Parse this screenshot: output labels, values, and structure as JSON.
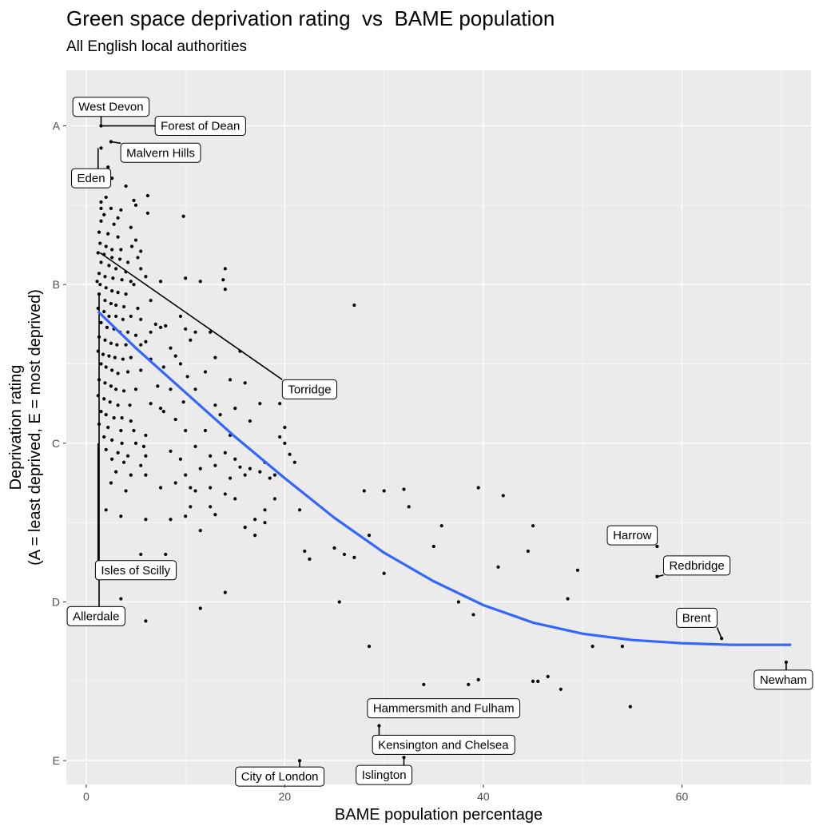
{
  "chart_data": {
    "type": "scatter",
    "title": "Green space deprivation rating  vs  BAME population",
    "subtitle": "All English local authorities",
    "xlabel": "BAME population percentage",
    "ylabel_lines": [
      "Deprivation rating",
      "(A = least deprived, E = most deprived)"
    ],
    "xlim": [
      -2,
      73
    ],
    "ylim": [
      5.15,
      0.65
    ],
    "x_ticks": [
      0,
      20,
      40,
      60
    ],
    "x_tick_labels": [
      "0",
      "20",
      "40",
      "60"
    ],
    "y_ticks": [
      1,
      2,
      3,
      4,
      5
    ],
    "y_tick_labels": [
      "A",
      "B",
      "C",
      "D",
      "E"
    ],
    "grid": true,
    "colors": {
      "panel": "#ebebeb",
      "grid": "#ffffff",
      "points": "#000000",
      "smooth": "#3366ff"
    },
    "points": [
      [
        1.5,
        1.0
      ],
      [
        2.5,
        1.1
      ],
      [
        1.5,
        1.14
      ],
      [
        2.2,
        1.26
      ],
      [
        2.6,
        1.33
      ],
      [
        4.0,
        1.38
      ],
      [
        2.0,
        1.45
      ],
      [
        1.5,
        1.48
      ],
      [
        4.8,
        1.47
      ],
      [
        6.2,
        1.44
      ],
      [
        5.0,
        1.5
      ],
      [
        1.5,
        1.52
      ],
      [
        2.5,
        1.52
      ],
      [
        3.5,
        1.53
      ],
      [
        1.8,
        1.56
      ],
      [
        3.2,
        1.58
      ],
      [
        6.2,
        1.55
      ],
      [
        9.8,
        1.57
      ],
      [
        1.5,
        1.6
      ],
      [
        2.8,
        1.62
      ],
      [
        4.5,
        1.64
      ],
      [
        1.3,
        1.67
      ],
      [
        2.2,
        1.68
      ],
      [
        3.2,
        1.7
      ],
      [
        5.0,
        1.72
      ],
      [
        1.4,
        1.74
      ],
      [
        2.0,
        1.76
      ],
      [
        2.6,
        1.78
      ],
      [
        3.5,
        1.78
      ],
      [
        4.6,
        1.76
      ],
      [
        5.5,
        1.79
      ],
      [
        1.2,
        1.8
      ],
      [
        1.8,
        1.81
      ],
      [
        2.6,
        1.83
      ],
      [
        3.4,
        1.84
      ],
      [
        4.2,
        1.86
      ],
      [
        5.2,
        1.83
      ],
      [
        1.5,
        1.86
      ],
      [
        2.3,
        1.88
      ],
      [
        3.0,
        1.9
      ],
      [
        4.0,
        1.92
      ],
      [
        5.5,
        1.9
      ],
      [
        1.3,
        1.93
      ],
      [
        1.9,
        1.95
      ],
      [
        2.7,
        1.96
      ],
      [
        3.6,
        1.97
      ],
      [
        4.5,
        1.98
      ],
      [
        6.0,
        1.95
      ],
      [
        7.5,
        1.98
      ],
      [
        14.0,
        1.9
      ],
      [
        1.1,
        1.98
      ],
      [
        1.4,
        2.0
      ],
      [
        2.0,
        2.02
      ],
      [
        2.6,
        2.04
      ],
      [
        3.2,
        2.05
      ],
      [
        4.0,
        2.06
      ],
      [
        4.8,
        2.0
      ],
      [
        10.0,
        1.96
      ],
      [
        11.5,
        1.98
      ],
      [
        13.8,
        1.97
      ],
      [
        1.3,
        2.06
      ],
      [
        1.9,
        2.1
      ],
      [
        2.5,
        2.12
      ],
      [
        3.0,
        2.13
      ],
      [
        3.8,
        2.14
      ],
      [
        5.2,
        2.15
      ],
      [
        6.5,
        2.1
      ],
      [
        14.0,
        2.03
      ],
      [
        1.2,
        2.15
      ],
      [
        1.8,
        2.17
      ],
      [
        2.3,
        2.2
      ],
      [
        3.0,
        2.2
      ],
      [
        3.7,
        2.22
      ],
      [
        4.5,
        2.2
      ],
      [
        5.5,
        2.22
      ],
      [
        7.0,
        2.25
      ],
      [
        8.0,
        2.26
      ],
      [
        9.5,
        2.2
      ],
      [
        27.0,
        2.13
      ],
      [
        1.5,
        2.24
      ],
      [
        2.1,
        2.27
      ],
      [
        2.8,
        2.28
      ],
      [
        3.4,
        2.3
      ],
      [
        4.2,
        2.3
      ],
      [
        5.0,
        2.32
      ],
      [
        6.5,
        2.3
      ],
      [
        7.5,
        2.27
      ],
      [
        10.0,
        2.28
      ],
      [
        11.0,
        2.3
      ],
      [
        12.5,
        2.3
      ],
      [
        1.3,
        2.33
      ],
      [
        1.9,
        2.35
      ],
      [
        2.5,
        2.37
      ],
      [
        3.1,
        2.38
      ],
      [
        4.0,
        2.38
      ],
      [
        5.5,
        2.38
      ],
      [
        6.0,
        2.36
      ],
      [
        8.5,
        2.4
      ],
      [
        9.0,
        2.45
      ],
      [
        10.5,
        2.35
      ],
      [
        1.2,
        2.42
      ],
      [
        1.7,
        2.44
      ],
      [
        2.3,
        2.45
      ],
      [
        2.9,
        2.46
      ],
      [
        3.7,
        2.47
      ],
      [
        4.5,
        2.46
      ],
      [
        6.5,
        2.47
      ],
      [
        9.5,
        2.5
      ],
      [
        13.0,
        2.46
      ],
      [
        15.5,
        2.42
      ],
      [
        1.5,
        2.5
      ],
      [
        2.0,
        2.52
      ],
      [
        2.6,
        2.54
      ],
      [
        3.2,
        2.56
      ],
      [
        4.2,
        2.55
      ],
      [
        5.5,
        2.54
      ],
      [
        7.8,
        2.52
      ],
      [
        10.2,
        2.58
      ],
      [
        12.0,
        2.55
      ],
      [
        14.5,
        2.6
      ],
      [
        1.3,
        2.6
      ],
      [
        1.9,
        2.62
      ],
      [
        2.5,
        2.64
      ],
      [
        3.0,
        2.66
      ],
      [
        3.8,
        2.67
      ],
      [
        5.0,
        2.66
      ],
      [
        7.2,
        2.64
      ],
      [
        8.5,
        2.66
      ],
      [
        11.0,
        2.66
      ],
      [
        16.0,
        2.62
      ],
      [
        1.2,
        2.7
      ],
      [
        1.8,
        2.72
      ],
      [
        2.4,
        2.74
      ],
      [
        3.2,
        2.76
      ],
      [
        4.4,
        2.76
      ],
      [
        6.5,
        2.75
      ],
      [
        7.5,
        2.78
      ],
      [
        9.8,
        2.74
      ],
      [
        13.0,
        2.76
      ],
      [
        17.5,
        2.75
      ],
      [
        1.5,
        2.8
      ],
      [
        2.0,
        2.82
      ],
      [
        2.8,
        2.84
      ],
      [
        3.6,
        2.84
      ],
      [
        4.5,
        2.86
      ],
      [
        7.8,
        2.8
      ],
      [
        9.0,
        2.85
      ],
      [
        13.5,
        2.82
      ],
      [
        15.0,
        2.78
      ],
      [
        19.5,
        2.75
      ],
      [
        1.3,
        2.88
      ],
      [
        2.2,
        2.9
      ],
      [
        3.5,
        2.92
      ],
      [
        4.8,
        2.92
      ],
      [
        6.0,
        2.95
      ],
      [
        10.0,
        2.92
      ],
      [
        12.0,
        2.92
      ],
      [
        14.5,
        2.95
      ],
      [
        16.5,
        2.86
      ],
      [
        20.0,
        2.9
      ],
      [
        1.8,
        2.96
      ],
      [
        2.6,
        2.98
      ],
      [
        3.6,
        3.0
      ],
      [
        5.0,
        3.0
      ],
      [
        5.8,
        3.02
      ],
      [
        8.5,
        3.05
      ],
      [
        11.0,
        3.02
      ],
      [
        14.0,
        3.06
      ],
      [
        19.5,
        2.96
      ],
      [
        20.0,
        3.0
      ],
      [
        2.0,
        3.04
      ],
      [
        3.2,
        3.06
      ],
      [
        4.2,
        3.08
      ],
      [
        6.0,
        3.08
      ],
      [
        9.5,
        3.1
      ],
      [
        12.5,
        3.08
      ],
      [
        15.0,
        3.1
      ],
      [
        18.0,
        3.12
      ],
      [
        20.5,
        3.07
      ],
      [
        2.6,
        3.1
      ],
      [
        3.8,
        3.12
      ],
      [
        5.5,
        3.14
      ],
      [
        10.0,
        3.2
      ],
      [
        11.5,
        3.16
      ],
      [
        13.0,
        3.14
      ],
      [
        15.5,
        3.15
      ],
      [
        16.5,
        3.16
      ],
      [
        17.5,
        3.18
      ],
      [
        19.0,
        3.2
      ],
      [
        21.0,
        3.12
      ],
      [
        3.0,
        3.18
      ],
      [
        4.5,
        3.2
      ],
      [
        6.0,
        3.2
      ],
      [
        9.0,
        3.25
      ],
      [
        10.5,
        3.28
      ],
      [
        12.5,
        3.28
      ],
      [
        14.5,
        3.22
      ],
      [
        16.0,
        3.2
      ],
      [
        18.5,
        3.22
      ],
      [
        2.5,
        3.25
      ],
      [
        4.0,
        3.3
      ],
      [
        7.5,
        3.28
      ],
      [
        11.0,
        3.3
      ],
      [
        14.0,
        3.32
      ],
      [
        15.0,
        3.35
      ],
      [
        19.0,
        3.35
      ],
      [
        28.0,
        3.3
      ],
      [
        30.0,
        3.3
      ],
      [
        32.0,
        3.29
      ],
      [
        39.5,
        3.28
      ],
      [
        42.0,
        3.33
      ],
      [
        10.5,
        3.4
      ],
      [
        12.5,
        3.4
      ],
      [
        18.0,
        3.42
      ],
      [
        21.5,
        3.42
      ],
      [
        32.5,
        3.4
      ],
      [
        2.0,
        3.42
      ],
      [
        3.5,
        3.46
      ],
      [
        6.0,
        3.48
      ],
      [
        8.5,
        3.48
      ],
      [
        10.0,
        3.46
      ],
      [
        18.0,
        3.5
      ],
      [
        17.0,
        3.48
      ],
      [
        35.8,
        3.52
      ],
      [
        45.0,
        3.52
      ],
      [
        11.5,
        3.55
      ],
      [
        16.0,
        3.53
      ],
      [
        17.0,
        3.58
      ],
      [
        28.5,
        3.58
      ],
      [
        35.0,
        3.65
      ],
      [
        22.0,
        3.68
      ],
      [
        44.5,
        3.68
      ],
      [
        57.5,
        3.65
      ],
      [
        22.5,
        3.73
      ],
      [
        27.0,
        3.72
      ],
      [
        25.0,
        3.66
      ],
      [
        26.0,
        3.7
      ],
      [
        41.5,
        3.78
      ],
      [
        49.5,
        3.8
      ],
      [
        30.0,
        3.82
      ],
      [
        57.5,
        3.84
      ],
      [
        48.5,
        3.98
      ],
      [
        37.5,
        4.0
      ],
      [
        25.5,
        4.0
      ],
      [
        3.5,
        3.98
      ],
      [
        1.5,
        4.05
      ],
      [
        6.0,
        4.12
      ],
      [
        11.5,
        4.04
      ],
      [
        14.0,
        3.94
      ],
      [
        39.0,
        4.08
      ],
      [
        64.0,
        4.23
      ],
      [
        51.0,
        4.28
      ],
      [
        54.0,
        4.28
      ],
      [
        28.5,
        4.28
      ],
      [
        70.5,
        4.38
      ],
      [
        34.0,
        4.52
      ],
      [
        38.5,
        4.52
      ],
      [
        39.5,
        4.49
      ],
      [
        45.0,
        4.5
      ],
      [
        45.5,
        4.5
      ],
      [
        46.5,
        4.47
      ],
      [
        47.8,
        4.55
      ],
      [
        54.8,
        4.66
      ],
      [
        32.0,
        4.68
      ],
      [
        29.5,
        4.78
      ],
      [
        32.0,
        4.98
      ],
      [
        21.5,
        5.0
      ],
      [
        5.5,
        3.7
      ],
      [
        8.0,
        3.7
      ],
      [
        13.0,
        3.45
      ]
    ],
    "smooth_curve": [
      [
        1.2,
        2.17
      ],
      [
        5,
        2.4
      ],
      [
        10,
        2.68
      ],
      [
        15,
        2.96
      ],
      [
        20,
        3.22
      ],
      [
        25,
        3.47
      ],
      [
        30,
        3.69
      ],
      [
        35,
        3.87
      ],
      [
        40,
        4.02
      ],
      [
        45,
        4.13
      ],
      [
        50,
        4.2
      ],
      [
        55,
        4.24
      ],
      [
        60,
        4.26
      ],
      [
        65,
        4.27
      ],
      [
        71,
        4.27
      ]
    ],
    "labels": [
      {
        "text": "West Devon",
        "point": [
          1.5,
          1.0
        ],
        "anchor": [
          2.5,
          0.88
        ]
      },
      {
        "text": "Forest of Dean",
        "point": [
          1.5,
          1.0
        ],
        "anchor": [
          11.5,
          1.0
        ]
      },
      {
        "text": "Eden",
        "point": [
          1.2,
          1.14
        ],
        "anchor": [
          0.5,
          1.33
        ]
      },
      {
        "text": "Malvern Hills",
        "point": [
          2.5,
          1.1
        ],
        "anchor": [
          7.5,
          1.17
        ]
      },
      {
        "text": "Torridge",
        "point": [
          1.4,
          1.8
        ],
        "anchor": [
          22.5,
          2.66
        ]
      },
      {
        "text": "Isles of Scilly",
        "point": [
          1.2,
          3.0
        ],
        "anchor": [
          5.0,
          3.8
        ]
      },
      {
        "text": "Allerdale",
        "point": [
          1.3,
          2.06
        ],
        "anchor": [
          1.0,
          4.09
        ]
      },
      {
        "text": "City of London",
        "point": [
          21.5,
          5.0
        ],
        "anchor": [
          19.5,
          5.1
        ]
      },
      {
        "text": "Islington",
        "point": [
          32.0,
          4.98
        ],
        "anchor": [
          30.0,
          5.09
        ]
      },
      {
        "text": "Kensington and Chelsea",
        "point": [
          29.5,
          4.78
        ],
        "anchor": [
          36.0,
          4.9
        ]
      },
      {
        "text": "Hammersmith and Fulham",
        "point": [
          32.0,
          4.68
        ],
        "anchor": [
          36.0,
          4.67
        ]
      },
      {
        "text": "Harrow",
        "point": [
          57.5,
          3.65
        ],
        "anchor": [
          55.0,
          3.58
        ]
      },
      {
        "text": "Redbridge",
        "point": [
          57.5,
          3.84
        ],
        "anchor": [
          61.5,
          3.77
        ]
      },
      {
        "text": "Brent",
        "point": [
          64.0,
          4.23
        ],
        "anchor": [
          61.5,
          4.1
        ]
      },
      {
        "text": "Newham",
        "point": [
          70.5,
          4.38
        ],
        "anchor": [
          71.5,
          4.49
        ]
      }
    ]
  }
}
